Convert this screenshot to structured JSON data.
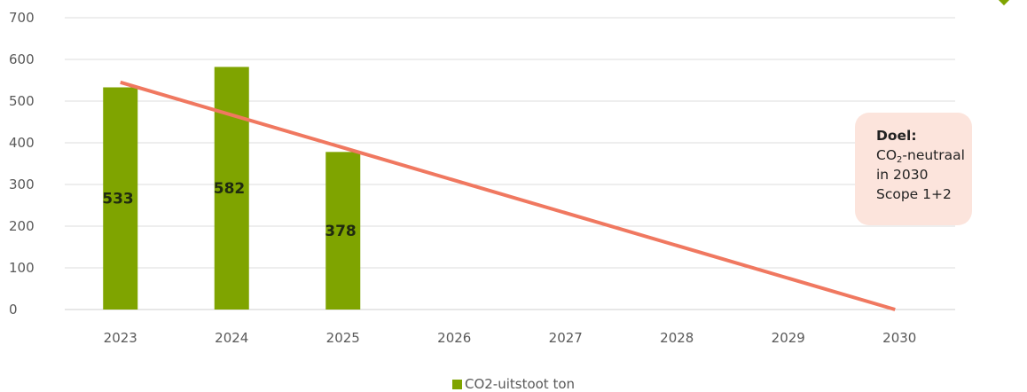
{
  "chart_data": {
    "type": "bar",
    "categories": [
      "2023",
      "2024",
      "2025",
      "2026",
      "2027",
      "2028",
      "2029",
      "2030"
    ],
    "series": [
      {
        "name": "CO2-uitstoot ton",
        "values": [
          533,
          582,
          378,
          null,
          null,
          null,
          null,
          null
        ],
        "color": "#7fa400"
      }
    ],
    "data_labels": [
      "533",
      "582",
      "378"
    ],
    "trend_line": {
      "from": {
        "x": "2023",
        "y": 545
      },
      "to": {
        "x": "2030",
        "y": 0
      },
      "color": "#f07860"
    },
    "ylim": [
      0,
      700
    ],
    "yticks": [
      0,
      100,
      200,
      300,
      400,
      500,
      600,
      700
    ],
    "grid": true,
    "legend_position": "bottom"
  },
  "goal_box": {
    "title": "Doel:",
    "line1_prefix": "CO",
    "line1_sub": "2",
    "line1_suffix": "-neutraal",
    "line2": "in 2030",
    "line3": "Scope 1+2",
    "background": "#fce4dc"
  },
  "legend": {
    "label": "CO2-uitstoot ton",
    "color": "#7fa400"
  }
}
